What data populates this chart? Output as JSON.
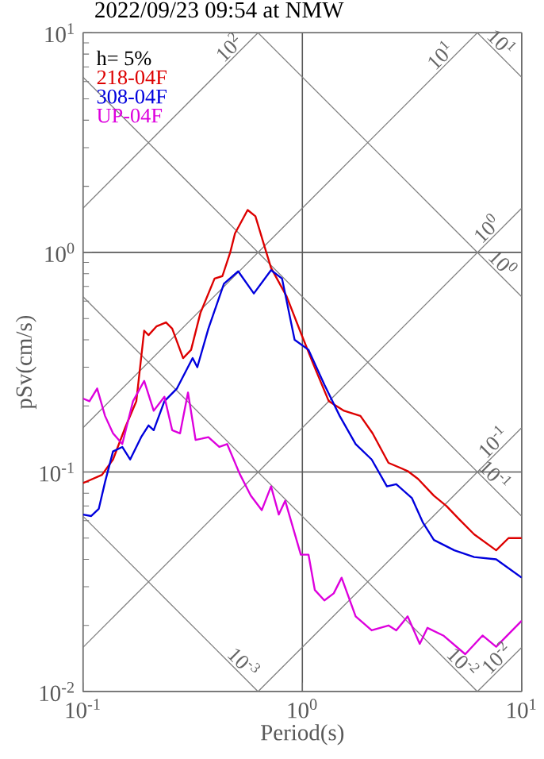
{
  "chart_data": {
    "type": "line",
    "title": "2022/09/23 09:54 at NMW",
    "xlabel": "Period(s)",
    "ylabel": "pSv(cm/s)",
    "log": "xy",
    "grid": true,
    "legend": "top left",
    "legend_title": "h= 5%",
    "xlim": [
      0.1,
      10
    ],
    "ylim": [
      0.01,
      10
    ],
    "xticks": [
      {
        "value": 0.1,
        "label": "10$^{-1}$"
      },
      {
        "value": 1,
        "label": "10$^{0}$"
      },
      {
        "value": 10,
        "label": "10$^{1}$"
      }
    ],
    "yticks": [
      {
        "value": 0.01,
        "label": "10$^{-2}$"
      },
      {
        "value": 0.1,
        "label": "10$^{-1}$"
      },
      {
        "value": 1,
        "label": "10$^{0}$"
      },
      {
        "value": 10,
        "label": "10$^{1}$"
      }
    ],
    "series": [
      {
        "name": "218-04F",
        "color": "#dd0000",
        "x": [
          0.1,
          0.122,
          0.137,
          0.156,
          0.175,
          0.19,
          0.199,
          0.216,
          0.239,
          0.255,
          0.286,
          0.311,
          0.343,
          0.398,
          0.432,
          0.469,
          0.493,
          0.563,
          0.611,
          0.685,
          0.72,
          0.848,
          0.984,
          1.122,
          1.32,
          1.55,
          1.84,
          2.09,
          2.47,
          3.02,
          3.37,
          3.98,
          4.54,
          5.18,
          6.07,
          7.65,
          8.71,
          10
        ],
        "values": [
          0.089,
          0.097,
          0.114,
          0.16,
          0.21,
          0.44,
          0.42,
          0.46,
          0.48,
          0.45,
          0.33,
          0.36,
          0.53,
          0.76,
          0.78,
          1.0,
          1.22,
          1.56,
          1.46,
          1.0,
          0.85,
          0.63,
          0.43,
          0.31,
          0.21,
          0.19,
          0.18,
          0.15,
          0.11,
          0.101,
          0.093,
          0.078,
          0.07,
          0.061,
          0.052,
          0.044,
          0.05,
          0.05
        ]
      },
      {
        "name": "308-04F",
        "color": "#0000dd",
        "x": [
          0.1,
          0.109,
          0.118,
          0.126,
          0.137,
          0.151,
          0.164,
          0.184,
          0.199,
          0.21,
          0.235,
          0.268,
          0.316,
          0.332,
          0.373,
          0.439,
          0.51,
          0.601,
          0.72,
          0.808,
          0.922,
          1.067,
          1.26,
          1.48,
          1.75,
          2.07,
          2.43,
          2.68,
          3.16,
          3.54,
          3.98,
          4.93,
          6.07,
          7.65,
          10
        ],
        "values": [
          0.064,
          0.063,
          0.068,
          0.09,
          0.124,
          0.13,
          0.114,
          0.144,
          0.163,
          0.155,
          0.21,
          0.24,
          0.33,
          0.3,
          0.45,
          0.72,
          0.82,
          0.65,
          0.83,
          0.76,
          0.4,
          0.36,
          0.25,
          0.18,
          0.134,
          0.114,
          0.086,
          0.088,
          0.076,
          0.059,
          0.049,
          0.044,
          0.041,
          0.04,
          0.033
        ]
      },
      {
        "name": "UP-04F",
        "color": "#dd00dd",
        "x": [
          0.1,
          0.107,
          0.116,
          0.126,
          0.137,
          0.151,
          0.169,
          0.19,
          0.21,
          0.235,
          0.255,
          0.277,
          0.301,
          0.326,
          0.373,
          0.418,
          0.454,
          0.518,
          0.582,
          0.653,
          0.72,
          0.781,
          0.835,
          0.984,
          1.067,
          1.14,
          1.26,
          1.39,
          1.51,
          1.75,
          2.07,
          2.47,
          2.68,
          3.02,
          3.43,
          3.72,
          4.39,
          5.53,
          6.63,
          7.65,
          10
        ],
        "values": [
          0.216,
          0.21,
          0.24,
          0.18,
          0.15,
          0.134,
          0.21,
          0.26,
          0.19,
          0.22,
          0.155,
          0.15,
          0.23,
          0.14,
          0.144,
          0.13,
          0.134,
          0.098,
          0.078,
          0.067,
          0.086,
          0.064,
          0.074,
          0.042,
          0.042,
          0.029,
          0.026,
          0.028,
          0.033,
          0.022,
          0.019,
          0.02,
          0.019,
          0.022,
          0.0165,
          0.0195,
          0.018,
          0.0148,
          0.018,
          0.016,
          0.021
        ]
      },
      {
        "color": "#808080",
        "x": [
          0.1,
          0.628
        ],
        "values": [
          1.59,
          10
        ]
      },
      {
        "color": "#808080",
        "x": [
          0.1,
          6.28
        ],
        "values": [
          0.159,
          10
        ]
      },
      {
        "color": "#808080",
        "x": [
          0.1,
          10
        ],
        "values": [
          0.0159,
          1.59
        ]
      },
      {
        "color": "#808080",
        "x": [
          0.628,
          10
        ],
        "values": [
          0.01,
          0.159
        ]
      },
      {
        "color": "#808080",
        "x": [
          6.28,
          10
        ],
        "values": [
          0.01,
          0.0159
        ]
      },
      {
        "color": "#808080",
        "x": [
          6.28,
          10
        ],
        "values": [
          10,
          6.28
        ]
      },
      {
        "color": "#808080",
        "x": [
          0.628,
          10
        ],
        "values": [
          10,
          0.628
        ]
      },
      {
        "color": "#808080",
        "x": [
          0.1,
          10
        ],
        "values": [
          6.28,
          0.0628
        ]
      },
      {
        "color": "#808080",
        "x": [
          0.1,
          6.28
        ],
        "values": [
          0.628,
          0.01
        ]
      },
      {
        "color": "#808080",
        "x": [
          0.1,
          0.628
        ],
        "values": [
          0.0628,
          0.01
        ]
      }
    ],
    "annotations": [
      {
        "text": "10$^{2}$",
        "x": 0.5,
        "y": 7.96
      },
      {
        "text": "10$^{1}$",
        "x": 4.6,
        "y": 7.32
      },
      {
        "text": "10$^{0}$",
        "x": 7.5,
        "y": 1.19
      },
      {
        "text": "10$^{-1}$",
        "x": 8,
        "y": 0.127
      },
      {
        "text": "10$^{-2}$",
        "x": 8.3,
        "y": 0.0132
      },
      {
        "text": "10$^{1}$",
        "x": 7.5,
        "y": 8.38
      },
      {
        "text": "10$^{0}$",
        "x": 7.6,
        "y": 0.827
      },
      {
        "text": "10$^{-1}$",
        "x": 7,
        "y": 0.0898
      },
      {
        "text": "10$^{-2}$",
        "x": 5,
        "y": 0.01257
      },
      {
        "text": "10$^{-3}$",
        "x": 0.5,
        "y": 0.01257
      }
    ]
  }
}
